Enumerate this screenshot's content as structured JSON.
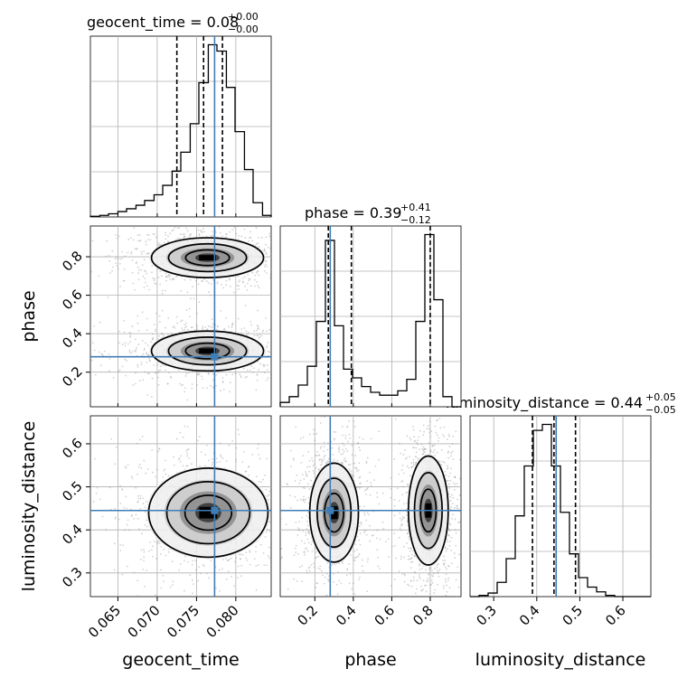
{
  "colors": {
    "truth": "#3f7db5",
    "hist": "#000000",
    "grid": "#b0b0b0",
    "scatter": "#9a9a9a"
  },
  "chart_data": {
    "type": "corner",
    "parameters": [
      "geocent_time",
      "phase",
      "luminosity_distance"
    ],
    "grid": true,
    "titles": [
      {
        "param": "geocent_time",
        "text": "geocent_time = 0.08",
        "sup": "+0.00",
        "sub": "−0.00"
      },
      {
        "param": "phase",
        "text": "phase = 0.39",
        "sup": "+0.41",
        "sub": "−0.12"
      },
      {
        "param": "luminosity_distance",
        "text": "luminosity_distance = 0.44",
        "sup": "+0.05",
        "sub": "−0.05"
      }
    ],
    "ranges": {
      "geocent_time": [
        0.0615,
        0.0845
      ],
      "phase": [
        0.02,
        0.96
      ],
      "luminosity_distance": [
        0.245,
        0.665
      ]
    },
    "ticks": {
      "geocent_time": [
        "0.065",
        "0.070",
        "0.075",
        "0.080"
      ],
      "phase": [
        "0.2",
        "0.4",
        "0.6",
        "0.8"
      ],
      "luminosity_distance": [
        "0.3",
        "0.4",
        "0.5",
        "0.6"
      ]
    },
    "truths": {
      "geocent_time": 0.0773,
      "phase": 0.28,
      "luminosity_distance": 0.445
    },
    "quantiles": {
      "geocent_time": [
        0.0725,
        0.0759,
        0.0783
      ],
      "phase": [
        0.27,
        0.39,
        0.8
      ],
      "luminosity_distance": [
        0.39,
        0.44,
        0.49
      ]
    },
    "histograms": {
      "geocent_time": {
        "edges": [
          0.0615,
          0.0627,
          0.0638,
          0.065,
          0.0661,
          0.0673,
          0.0684,
          0.0696,
          0.0707,
          0.0719,
          0.073,
          0.0742,
          0.0753,
          0.0765,
          0.0776,
          0.0788,
          0.0799,
          0.0811,
          0.0822,
          0.0834,
          0.0845
        ],
        "counts": [
          2,
          5,
          10,
          17,
          26,
          37,
          52,
          70,
          100,
          145,
          205,
          295,
          425,
          545,
          525,
          410,
          270,
          150,
          45,
          5
        ]
      },
      "phase": {
        "edges": [
          0.02,
          0.067,
          0.114,
          0.161,
          0.208,
          0.255,
          0.302,
          0.349,
          0.396,
          0.443,
          0.49,
          0.537,
          0.584,
          0.631,
          0.678,
          0.725,
          0.772,
          0.819,
          0.866,
          0.913,
          0.96
        ],
        "counts": [
          15,
          35,
          75,
          140,
          295,
          575,
          280,
          130,
          100,
          70,
          50,
          40,
          40,
          55,
          95,
          295,
          595,
          370,
          35,
          0
        ]
      },
      "luminosity_distance": {
        "edges": [
          0.245,
          0.266,
          0.287,
          0.308,
          0.329,
          0.35,
          0.371,
          0.392,
          0.413,
          0.434,
          0.455,
          0.476,
          0.497,
          0.518,
          0.539,
          0.56,
          0.581,
          0.602,
          0.623,
          0.644,
          0.665
        ],
        "counts": [
          0,
          5,
          15,
          60,
          160,
          340,
          550,
          700,
          725,
          550,
          355,
          180,
          80,
          40,
          20,
          5,
          0,
          0,
          0,
          0
        ]
      }
    },
    "contours_2d": [
      {
        "x": "geocent_time",
        "y": "phase",
        "blobs": [
          {
            "cx": 0.0764,
            "cy": 0.795,
            "sx": 0.0031,
            "sy": 0.045
          },
          {
            "cx": 0.0764,
            "cy": 0.31,
            "sx": 0.0031,
            "sy": 0.045
          }
        ]
      },
      {
        "x": "geocent_time",
        "y": "luminosity_distance",
        "blobs": [
          {
            "cx": 0.0765,
            "cy": 0.44,
            "sx": 0.0033,
            "sy": 0.045
          }
        ]
      },
      {
        "x": "phase",
        "y": "luminosity_distance",
        "blobs": [
          {
            "cx": 0.3,
            "cy": 0.44,
            "sx": 0.055,
            "sy": 0.05
          },
          {
            "cx": 0.79,
            "cy": 0.445,
            "sx": 0.045,
            "sy": 0.055
          }
        ]
      }
    ]
  }
}
